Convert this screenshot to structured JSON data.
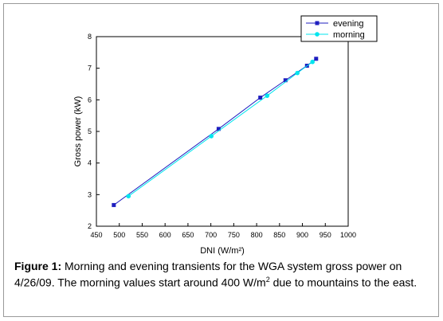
{
  "chart_data": {
    "type": "line",
    "xlabel": "DNI (W/m²)",
    "ylabel": "Gross power (kW)",
    "xlim": [
      450,
      1000
    ],
    "ylim": [
      2,
      8
    ],
    "x_ticks": [
      "450",
      "500",
      "550",
      "600",
      "650",
      "700",
      "750",
      "800",
      "850",
      "900",
      "950",
      "1000"
    ],
    "y_ticks": [
      "2",
      "3",
      "4",
      "5",
      "6",
      "7",
      "8"
    ],
    "grid": false,
    "legend_position": "top-right",
    "series": [
      {
        "name": "evening",
        "color": "#1f1fbf",
        "marker": "square",
        "x": [
          488,
          717,
          808,
          863,
          910,
          930
        ],
        "y": [
          2.67,
          5.08,
          6.07,
          6.62,
          7.08,
          7.3
        ]
      },
      {
        "name": "morning",
        "color": "#00e5ee",
        "marker": "circle",
        "x": [
          520,
          701,
          823,
          889,
          922
        ],
        "y": [
          2.95,
          4.85,
          6.13,
          6.85,
          7.2
        ]
      }
    ]
  },
  "caption": {
    "label": "Figure 1:",
    "text_1": " Morning and evening transients for the WGA system gross power on 4/26/09.  The morning values start around 400 W/m",
    "superscript": "2",
    "text_2": " due to mountains to the east."
  }
}
